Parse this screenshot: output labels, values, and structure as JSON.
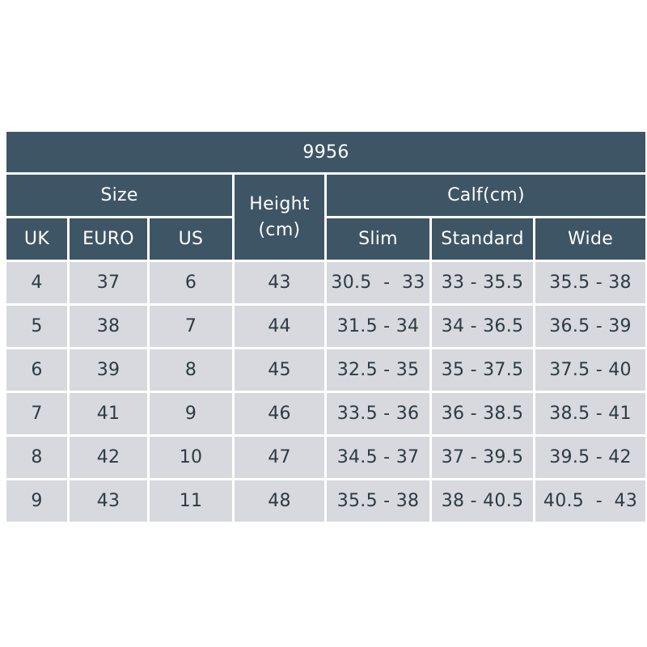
{
  "title": "9956",
  "groups": {
    "size": "Size",
    "height_line1": "Height",
    "height_line2": "(cm)",
    "calf": "Calf(cm)"
  },
  "subheaders": [
    "UK",
    "EURO",
    "US",
    "Slim",
    "Standard",
    "Wide"
  ],
  "rows": [
    [
      "4",
      "37",
      "6",
      "43",
      "30.5  -  33",
      "33 - 35.5",
      "35.5 - 38"
    ],
    [
      "5",
      "38",
      "7",
      "44",
      "31.5 - 34",
      "34 - 36.5",
      "36.5 - 39"
    ],
    [
      "6",
      "39",
      "8",
      "45",
      "32.5 - 35",
      "35 - 37.5",
      "37.5 - 40"
    ],
    [
      "7",
      "41",
      "9",
      "46",
      "33.5 - 36",
      "36 - 38.5",
      "38.5 - 41"
    ],
    [
      "8",
      "42",
      "10",
      "47",
      "34.5 - 37",
      "37 - 39.5",
      "39.5 - 42"
    ],
    [
      "9",
      "43",
      "11",
      "48",
      "35.5 - 38",
      "38 - 40.5",
      "40.5  -  43"
    ]
  ],
  "colors": {
    "header_bg": "#3e5565",
    "header_text": "#ffffff",
    "cell_bg": "#d7d9de",
    "cell_text": "#2e3a44"
  }
}
